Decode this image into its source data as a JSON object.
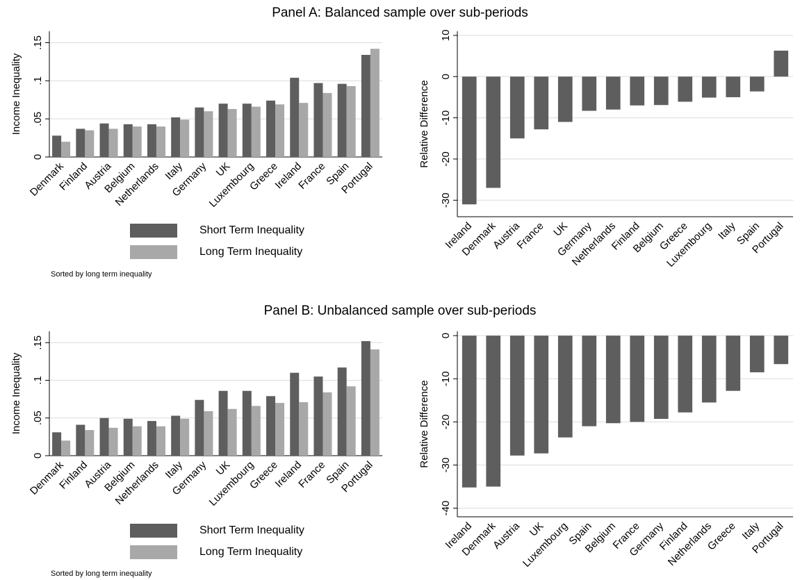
{
  "colors": {
    "short": "#5e5e5e",
    "long": "#a8a8a8",
    "diff": "#5e5e5e",
    "grid": "#dcdcdc",
    "axis": "#000000"
  },
  "panels": [
    {
      "title": "Panel A: Balanced sample over sub-periods",
      "legend": {
        "short": "Short Term Inequality",
        "long": "Long Term Inequality"
      },
      "note": "Sorted by long term inequality"
    },
    {
      "title": "Panel B: Unbalanced sample over sub-periods",
      "legend": {
        "short": "Short Term Inequality",
        "long": "Long Term Inequality"
      },
      "note": "Sorted by long term inequality"
    }
  ],
  "chart_data": [
    {
      "type": "bar",
      "panel": "Panel A: Balanced sample over sub-periods",
      "ylabel": "Income Inequality",
      "ylim": [
        0,
        0.165
      ],
      "yticks": [
        0,
        0.05,
        0.1,
        0.15
      ],
      "ytick_labels": [
        "0",
        ".05",
        ".1",
        ".15"
      ],
      "grid": true,
      "categories": [
        "Denmark",
        "Finland",
        "Austria",
        "Belgium",
        "Netherlands",
        "Italy",
        "Germany",
        "UK",
        "Luxembourg",
        "Greece",
        "Ireland",
        "France",
        "Spain",
        "Portugal"
      ],
      "series": [
        {
          "name": "Short Term Inequality",
          "values": [
            0.028,
            0.037,
            0.044,
            0.043,
            0.043,
            0.052,
            0.065,
            0.07,
            0.07,
            0.074,
            0.104,
            0.097,
            0.096,
            0.134
          ]
        },
        {
          "name": "Long Term Inequality",
          "values": [
            0.02,
            0.035,
            0.037,
            0.04,
            0.04,
            0.049,
            0.06,
            0.063,
            0.066,
            0.069,
            0.071,
            0.084,
            0.093,
            0.142
          ]
        }
      ]
    },
    {
      "type": "bar",
      "panel": "Panel A: Balanced sample over sub-periods",
      "ylabel": "Relative Difference",
      "ylim": [
        -34,
        11
      ],
      "yticks": [
        -30,
        -20,
        -10,
        0,
        10
      ],
      "ytick_labels": [
        "-30",
        "-20",
        "-10",
        "0",
        "10"
      ],
      "grid": true,
      "categories": [
        "Ireland",
        "Denmark",
        "Austria",
        "France",
        "UK",
        "Germany",
        "Netherlands",
        "Finland",
        "Belgium",
        "Greece",
        "Luxembourg",
        "Italy",
        "Spain",
        "Portugal"
      ],
      "values": [
        -31.0,
        -27.0,
        -15.0,
        -12.8,
        -11.0,
        -8.3,
        -8.0,
        -7.0,
        -6.9,
        -6.1,
        -5.1,
        -5.0,
        -3.6,
        6.3
      ]
    },
    {
      "type": "bar",
      "panel": "Panel B: Unbalanced sample over sub-periods",
      "ylabel": "Income Inequality",
      "ylim": [
        0,
        0.165
      ],
      "yticks": [
        0,
        0.05,
        0.1,
        0.15
      ],
      "ytick_labels": [
        "0",
        ".05",
        ".1",
        ".15"
      ],
      "grid": true,
      "categories": [
        "Denmark",
        "Finland",
        "Austria",
        "Belgium",
        "Netherlands",
        "Italy",
        "Germany",
        "UK",
        "Luxembourg",
        "Greece",
        "Ireland",
        "France",
        "Spain",
        "Portugal"
      ],
      "series": [
        {
          "name": "Short Term Inequality",
          "values": [
            0.031,
            0.041,
            0.05,
            0.049,
            0.046,
            0.053,
            0.074,
            0.086,
            0.086,
            0.079,
            0.11,
            0.105,
            0.117,
            0.152
          ]
        },
        {
          "name": "Long Term Inequality",
          "values": [
            0.02,
            0.034,
            0.037,
            0.039,
            0.039,
            0.049,
            0.059,
            0.062,
            0.066,
            0.07,
            0.071,
            0.084,
            0.092,
            0.141
          ]
        }
      ]
    },
    {
      "type": "bar",
      "panel": "Panel B: Unbalanced sample over sub-periods",
      "ylabel": "Relative Difference",
      "ylim": [
        -42,
        1
      ],
      "yticks": [
        -40,
        -30,
        -20,
        -10,
        0
      ],
      "ytick_labels": [
        "-40",
        "-30",
        "-20",
        "-10",
        "0"
      ],
      "grid": true,
      "categories": [
        "Ireland",
        "Denmark",
        "Austria",
        "UK",
        "Luxembourg",
        "Spain",
        "Belgium",
        "France",
        "Germany",
        "Finland",
        "Netherlands",
        "Greece",
        "Italy",
        "Portugal"
      ],
      "values": [
        -35.2,
        -35.0,
        -27.8,
        -27.3,
        -23.6,
        -21.0,
        -20.3,
        -20.0,
        -19.3,
        -17.8,
        -15.5,
        -12.8,
        -8.5,
        -6.6
      ]
    }
  ]
}
